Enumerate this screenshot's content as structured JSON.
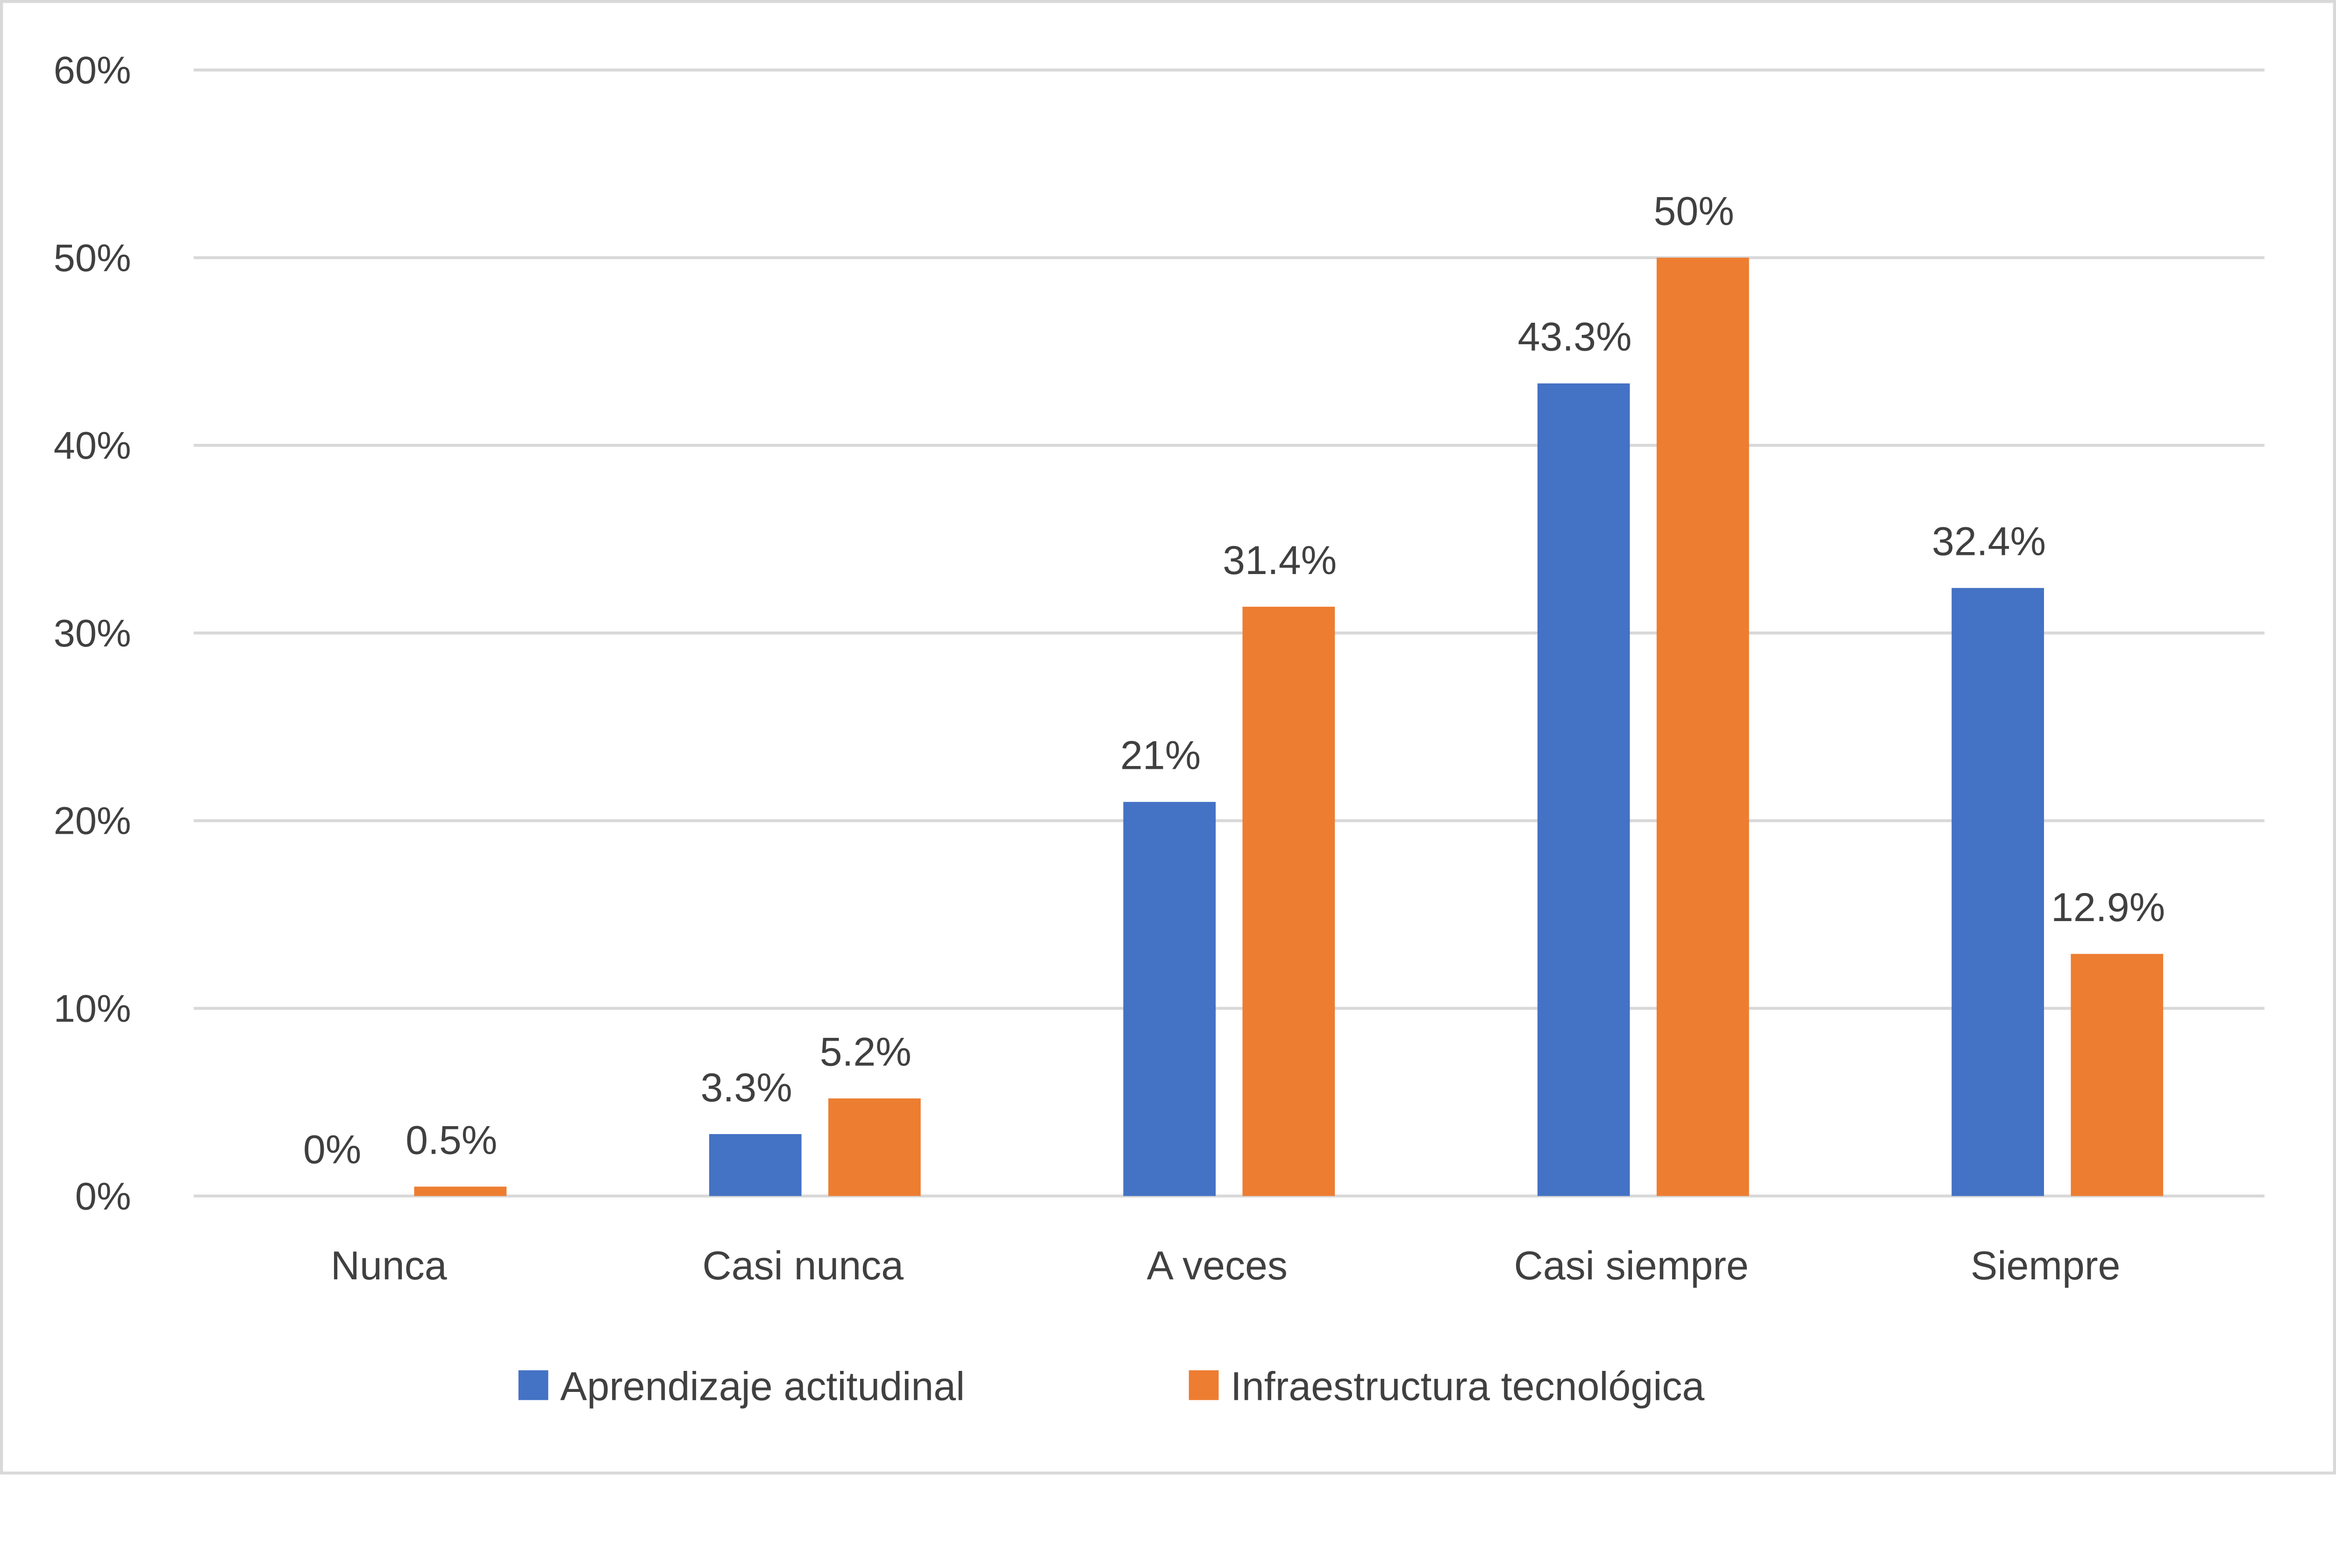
{
  "chart_data": {
    "type": "bar",
    "categories": [
      "Nunca",
      "Casi nunca",
      "A veces",
      "Casi siempre",
      "Siempre"
    ],
    "series": [
      {
        "name": "Aprendizaje actitudinal",
        "values": [
          0,
          3.3,
          21,
          43.3,
          32.4
        ],
        "labels": [
          "0%",
          "3.3%",
          "21%",
          "43.3%",
          "32.4%"
        ],
        "color": "#4472C4"
      },
      {
        "name": "Infraestructura tecnológica",
        "values": [
          0.5,
          5.2,
          31.4,
          50,
          12.9
        ],
        "labels": [
          "0.5%",
          "5.2%",
          "31.4%",
          "50%",
          "12.9%"
        ],
        "color": "#ED7D31"
      }
    ],
    "yticks": [
      "0%",
      "10%",
      "20%",
      "30%",
      "40%",
      "50%",
      "60%"
    ],
    "ylim": [
      0,
      60
    ],
    "grid": true,
    "legend": "bottom",
    "title": "",
    "xlabel": "",
    "ylabel": ""
  }
}
